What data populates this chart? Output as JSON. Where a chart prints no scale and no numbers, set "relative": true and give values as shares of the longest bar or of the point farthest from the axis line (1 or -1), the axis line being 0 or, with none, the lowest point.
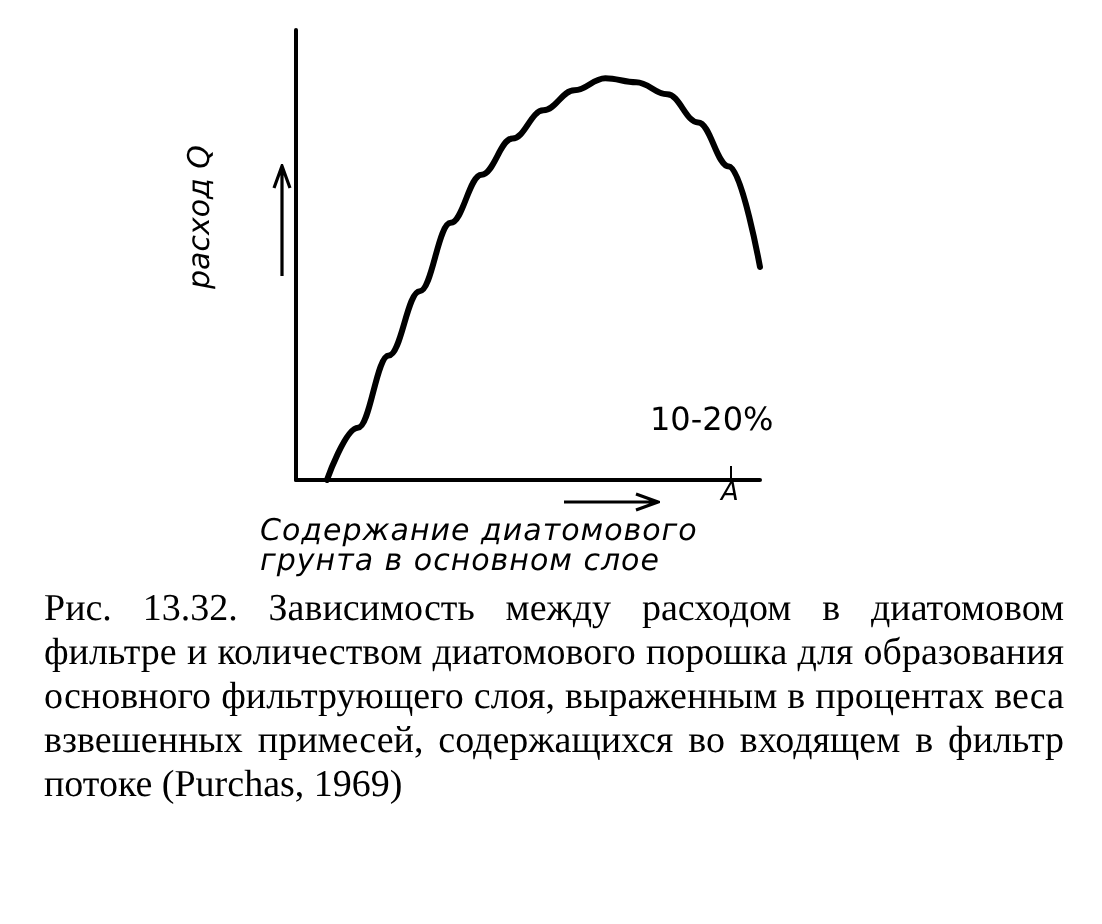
{
  "chart_data": {
    "type": "line",
    "relative": true,
    "ylabel": "расход Q",
    "xlabel": "Содержание диатомового грунта в основном слое",
    "categories": [
      null,
      null,
      null,
      null,
      null,
      null,
      null,
      null,
      null,
      null,
      null,
      null,
      null,
      null,
      null,
      null
    ],
    "series": [
      {
        "color": "#000000",
        "values": [
          null,
          0,
          0.13,
          0.31,
          0.47,
          0.64,
          0.76,
          0.85,
          0.92,
          0.97,
          1,
          0.99,
          0.96,
          0.89,
          0.78,
          0.53
        ]
      }
    ],
    "annotations": [
      "10-20%",
      "A",
      "Рис. 13.32. Зависимость между расходом в диатомовом фильтре и количеством диатомового порошка для образования основного фильтрующего слоя, выраженным в процентах веса взвешенных примесей, содержащихся во входящем в фильтр потоке (Purchas, 1969)"
    ],
    "grid": false,
    "marker": "none",
    "line_style": "solid"
  }
}
